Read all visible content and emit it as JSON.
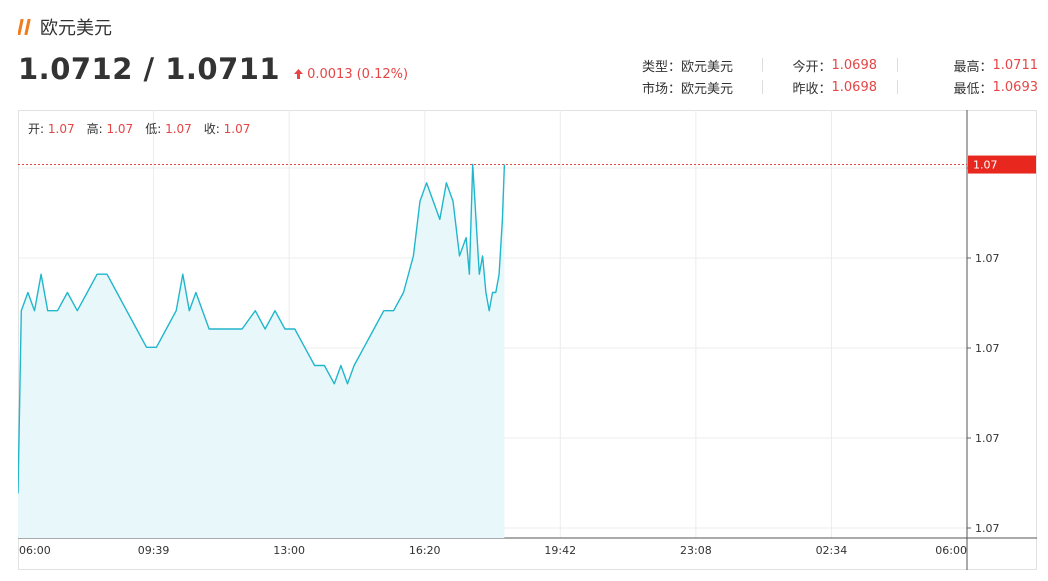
{
  "header": {
    "title": "欧元美元",
    "title_icon": "double-slash-icon",
    "price": "1.0712 / 1.0711",
    "change_icon": "up-arrow-icon",
    "change": "0.0013",
    "change_pct": "(0.12%)"
  },
  "stats": {
    "type_label": "类型：",
    "type_value": "欧元美元",
    "market_label": "市场：",
    "market_value": "欧元美元",
    "open_label": "今开：",
    "open_value": "1.0698",
    "prev_close_label": "昨收：",
    "prev_close_value": "1.0698",
    "high_label": "最高：",
    "high_value": "1.0711",
    "low_label": "最低：",
    "low_value": "1.0693"
  },
  "ohlc": {
    "open_label": "开:",
    "open_value": "1.07",
    "high_label": "高:",
    "high_value": "1.07",
    "low_label": "低:",
    "low_value": "1.07",
    "close_label": "收:",
    "close_value": "1.07"
  },
  "colors": {
    "line": "#21b6cc",
    "area": "#e8f8fa",
    "accent_red": "#e54545",
    "grid": "#ececec",
    "price_tag_bg": "#e8271f"
  },
  "chart_data": {
    "type": "area",
    "x_ticks": [
      "06:00",
      "09:39",
      "13:00",
      "16:20",
      "19:42",
      "23:08",
      "02:34",
      "06:00"
    ],
    "y_ticks": [
      "1.07",
      "1.07",
      "1.07",
      "1.07",
      "1.07"
    ],
    "y_range": [
      1.0691,
      1.0713
    ],
    "current_price_label": "1.07",
    "current_price": 1.0711,
    "grid": true,
    "points": [
      [
        "06:00",
        1.0693
      ],
      [
        "06:05",
        1.0703
      ],
      [
        "06:15",
        1.0704
      ],
      [
        "06:25",
        1.0703
      ],
      [
        "06:35",
        1.0705
      ],
      [
        "06:45",
        1.0703
      ],
      [
        "07:00",
        1.0703
      ],
      [
        "07:15",
        1.0704
      ],
      [
        "07:30",
        1.0703
      ],
      [
        "07:45",
        1.0704
      ],
      [
        "08:00",
        1.0705
      ],
      [
        "08:15",
        1.0705
      ],
      [
        "08:30",
        1.0704
      ],
      [
        "08:45",
        1.0703
      ],
      [
        "09:00",
        1.0702
      ],
      [
        "09:15",
        1.0701
      ],
      [
        "09:30",
        1.0701
      ],
      [
        "09:45",
        1.0702
      ],
      [
        "10:00",
        1.0703
      ],
      [
        "10:10",
        1.0705
      ],
      [
        "10:20",
        1.0703
      ],
      [
        "10:30",
        1.0704
      ],
      [
        "10:40",
        1.0703
      ],
      [
        "10:50",
        1.0702
      ],
      [
        "11:00",
        1.0702
      ],
      [
        "11:20",
        1.0702
      ],
      [
        "11:40",
        1.0702
      ],
      [
        "12:00",
        1.0703
      ],
      [
        "12:15",
        1.0702
      ],
      [
        "12:30",
        1.0703
      ],
      [
        "12:45",
        1.0702
      ],
      [
        "13:00",
        1.0702
      ],
      [
        "13:15",
        1.0701
      ],
      [
        "13:30",
        1.07
      ],
      [
        "13:45",
        1.07
      ],
      [
        "14:00",
        1.0699
      ],
      [
        "14:10",
        1.07
      ],
      [
        "14:20",
        1.0699
      ],
      [
        "14:30",
        1.07
      ],
      [
        "14:45",
        1.0701
      ],
      [
        "15:00",
        1.0702
      ],
      [
        "15:15",
        1.0703
      ],
      [
        "15:30",
        1.0703
      ],
      [
        "15:45",
        1.0704
      ],
      [
        "16:00",
        1.0706
      ],
      [
        "16:10",
        1.0709
      ],
      [
        "16:20",
        1.071
      ],
      [
        "16:30",
        1.0709
      ],
      [
        "16:40",
        1.0708
      ],
      [
        "16:50",
        1.071
      ],
      [
        "17:00",
        1.0709
      ],
      [
        "17:10",
        1.0706
      ],
      [
        "17:20",
        1.0707
      ],
      [
        "17:25",
        1.0705
      ],
      [
        "17:30",
        1.0711
      ],
      [
        "17:35",
        1.0708
      ],
      [
        "17:40",
        1.0705
      ],
      [
        "17:45",
        1.0706
      ],
      [
        "17:50",
        1.0704
      ],
      [
        "17:55",
        1.0703
      ],
      [
        "18:00",
        1.0704
      ],
      [
        "18:05",
        1.0704
      ],
      [
        "18:10",
        1.0705
      ],
      [
        "18:15",
        1.0708
      ],
      [
        "18:18",
        1.0711
      ]
    ]
  }
}
